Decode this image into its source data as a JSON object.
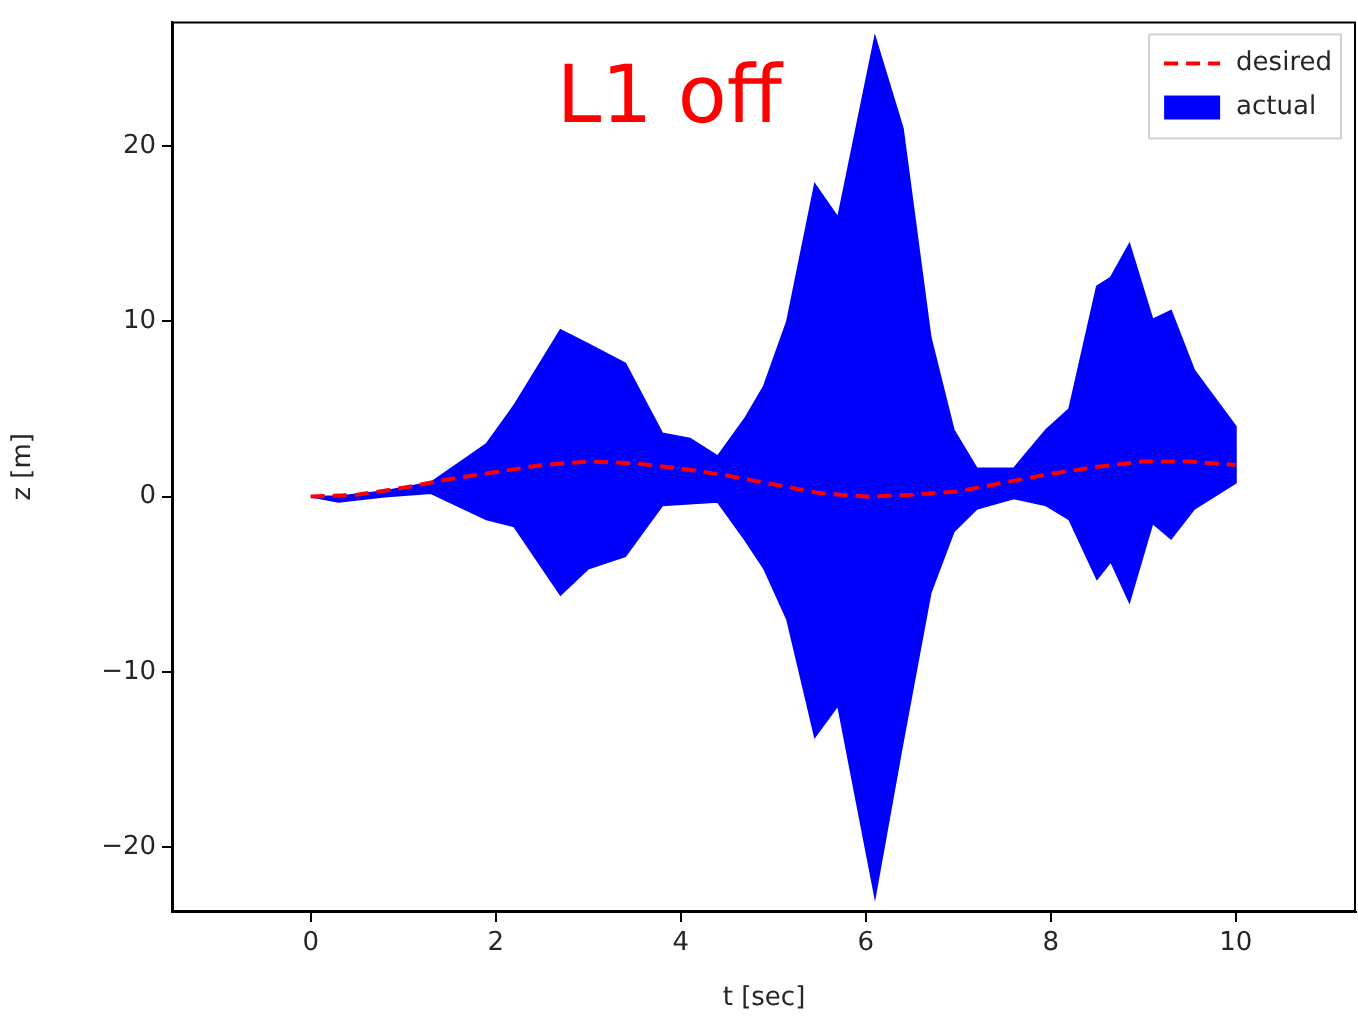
{
  "chart_data": {
    "type": "line",
    "xlabel": "t [sec]",
    "ylabel": "z [m]",
    "xlim": [
      -1.5,
      11.3
    ],
    "xticks": [
      0,
      2,
      4,
      6,
      8,
      10
    ],
    "ylim": [
      -23.7,
      27.1
    ],
    "yticks": [
      -20,
      -10,
      0,
      10,
      20
    ],
    "legend": "top right",
    "annotations": [
      "L1 off"
    ],
    "series": [
      {
        "name": "desired",
        "type": "line",
        "color": "#ff0000",
        "line_style": "dashed",
        "x": [
          0,
          0.5,
          1,
          1.5,
          2,
          2.5,
          3,
          3.5,
          4,
          4.5,
          5,
          5.5,
          6,
          6.5,
          7,
          7.5,
          8,
          8.5,
          9,
          9.5,
          10
        ],
        "values": [
          0,
          0.1,
          0.5,
          1.0,
          1.4,
          1.8,
          2.0,
          1.9,
          1.6,
          1.2,
          0.7,
          0.2,
          0,
          0.1,
          0.3,
          0.8,
          1.3,
          1.7,
          2.0,
          2.0,
          1.8
        ]
      },
      {
        "name": "actual",
        "type": "area",
        "color": "#0000ff",
        "x": [
          0,
          0.3,
          0.8,
          1.3,
          1.9,
          2.2,
          2.7,
          3.0,
          3.4,
          3.8,
          4.1,
          4.4,
          4.7,
          4.9,
          5.15,
          5.45,
          5.7,
          6.1,
          6.4,
          6.7,
          6.95,
          7.2,
          7.6,
          7.95,
          8.2,
          8.5,
          8.65,
          8.85,
          9.1,
          9.3,
          9.55,
          10,
          10,
          9.55,
          9.3,
          9.1,
          8.85,
          8.65,
          8.5,
          8.2,
          7.95,
          7.6,
          7.2,
          6.95,
          6.7,
          6.4,
          6.1,
          5.7,
          5.45,
          5.15,
          4.9,
          4.7,
          4.4,
          4.1,
          3.8,
          3.4,
          3.0,
          2.7,
          2.2,
          1.9,
          1.3,
          0.8,
          0.3,
          0
        ],
        "values": [
          0,
          0,
          0.3,
          0.8,
          3.0,
          5.2,
          9.5,
          8.7,
          7.6,
          3.6,
          3.3,
          2.3,
          4.5,
          6.3,
          10,
          17.8,
          15.9,
          26.2,
          21,
          9.1,
          3.8,
          1.6,
          1.6,
          3.8,
          5.0,
          12,
          12.5,
          14.4,
          10.1,
          10.6,
          7.2,
          4.0,
          0.8,
          -0.7,
          -2.4,
          -1.5,
          -6.0,
          -3.7,
          -4.7,
          -1.3,
          -0.5,
          -0.1,
          -0.7,
          -2,
          -5.5,
          -14,
          -22.8,
          -11.9,
          -13.7,
          -7,
          -4.1,
          -2.5,
          -0.3,
          -0.4,
          -0.5,
          -3.4,
          -4.1,
          -5.6,
          -1.7,
          -1.3,
          0.2,
          0,
          -0.3,
          0
        ]
      }
    ]
  }
}
